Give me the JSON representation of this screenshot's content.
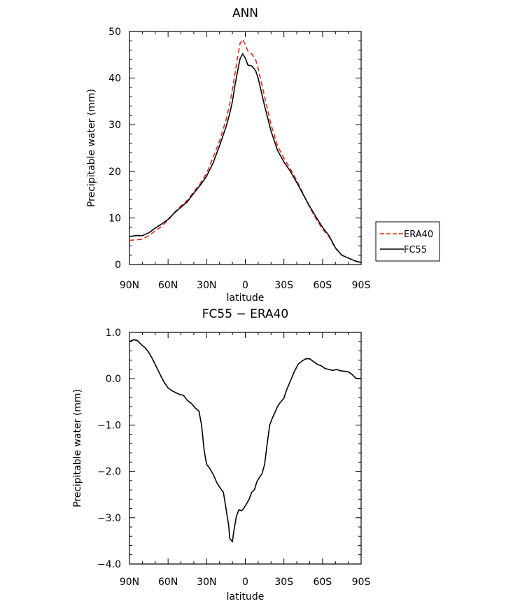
{
  "chart_data": [
    {
      "type": "line",
      "title": "ANN",
      "xlabel": "latitude",
      "ylabel": "Precipitable water (mm)",
      "xlim": [
        -90,
        90
      ],
      "ylim": [
        0,
        50
      ],
      "xticks": [
        {
          "v": -90,
          "label": "90N"
        },
        {
          "v": -60,
          "label": "60N"
        },
        {
          "v": -30,
          "label": "30N"
        },
        {
          "v": 0,
          "label": "0"
        },
        {
          "v": 30,
          "label": "30S"
        },
        {
          "v": 60,
          "label": "60S"
        },
        {
          "v": 90,
          "label": "90S"
        }
      ],
      "yticks": [
        {
          "v": 0,
          "label": "0"
        },
        {
          "v": 10,
          "label": "10"
        },
        {
          "v": 20,
          "label": "20"
        },
        {
          "v": 30,
          "label": "30"
        },
        {
          "v": 40,
          "label": "40"
        },
        {
          "v": 50,
          "label": "50"
        }
      ],
      "legend": {
        "position": "right"
      },
      "series": [
        {
          "name": "ERA40",
          "color": "#e8261c",
          "style": "dashed",
          "points": [
            [
              -90,
              5.2
            ],
            [
              -85,
              5.3
            ],
            [
              -80,
              5.4
            ],
            [
              -75,
              6.2
            ],
            [
              -70,
              7.2
            ],
            [
              -65,
              8.2
            ],
            [
              -60,
              9.5
            ],
            [
              -55,
              11.2
            ],
            [
              -50,
              12.6
            ],
            [
              -45,
              13.8
            ],
            [
              -40,
              15.6
            ],
            [
              -35,
              17.4
            ],
            [
              -30,
              19.6
            ],
            [
              -25,
              23.0
            ],
            [
              -20,
              26.5
            ],
            [
              -15,
              31.0
            ],
            [
              -12,
              34.5
            ],
            [
              -10,
              37.5
            ],
            [
              -8,
              41.0
            ],
            [
              -6,
              44.5
            ],
            [
              -4,
              47.5
            ],
            [
              -2,
              48.3
            ],
            [
              0,
              47.2
            ],
            [
              2,
              45.8
            ],
            [
              5,
              45.2
            ],
            [
              8,
              44.0
            ],
            [
              10,
              42.0
            ],
            [
              15,
              36.0
            ],
            [
              20,
              30.0
            ],
            [
              25,
              25.5
            ],
            [
              30,
              22.8
            ],
            [
              35,
              20.5
            ],
            [
              40,
              18.0
            ],
            [
              45,
              15.2
            ],
            [
              50,
              12.3
            ],
            [
              55,
              9.8
            ],
            [
              60,
              7.6
            ],
            [
              65,
              6.0
            ],
            [
              70,
              3.5
            ],
            [
              75,
              2.0
            ],
            [
              80,
              1.4
            ],
            [
              85,
              0.8
            ],
            [
              90,
              0.4
            ]
          ]
        },
        {
          "name": "FC55",
          "color": "#000000",
          "style": "solid",
          "points": [
            [
              -90,
              6.0
            ],
            [
              -85,
              6.2
            ],
            [
              -80,
              6.2
            ],
            [
              -75,
              6.8
            ],
            [
              -70,
              7.8
            ],
            [
              -65,
              8.7
            ],
            [
              -60,
              9.7
            ],
            [
              -55,
              11.1
            ],
            [
              -50,
              12.3
            ],
            [
              -45,
              13.5
            ],
            [
              -40,
              15.3
            ],
            [
              -35,
              17.0
            ],
            [
              -30,
              19.0
            ],
            [
              -25,
              21.8
            ],
            [
              -20,
              25.5
            ],
            [
              -15,
              29.5
            ],
            [
              -12,
              32.5
            ],
            [
              -10,
              35.0
            ],
            [
              -8,
              38.5
            ],
            [
              -6,
              41.5
            ],
            [
              -4,
              44.2
            ],
            [
              -2,
              45.2
            ],
            [
              0,
              44.3
            ],
            [
              2,
              42.8
            ],
            [
              5,
              42.6
            ],
            [
              8,
              41.6
            ],
            [
              10,
              40.0
            ],
            [
              15,
              34.0
            ],
            [
              20,
              28.6
            ],
            [
              25,
              24.5
            ],
            [
              30,
              22.0
            ],
            [
              35,
              20.0
            ],
            [
              40,
              17.6
            ],
            [
              45,
              15.0
            ],
            [
              50,
              12.5
            ],
            [
              55,
              10.2
            ],
            [
              60,
              8.0
            ],
            [
              65,
              6.2
            ],
            [
              70,
              3.6
            ],
            [
              75,
              2.0
            ],
            [
              80,
              1.4
            ],
            [
              85,
              0.8
            ],
            [
              90,
              0.4
            ]
          ]
        }
      ]
    },
    {
      "type": "line",
      "title": "FC55 − ERA40",
      "xlabel": "latitude",
      "ylabel": "Precipitable water (mm)",
      "xlim": [
        -90,
        90
      ],
      "ylim": [
        -4,
        1
      ],
      "xticks": [
        {
          "v": -90,
          "label": "90N"
        },
        {
          "v": -60,
          "label": "60N"
        },
        {
          "v": -30,
          "label": "30N"
        },
        {
          "v": 0,
          "label": "0"
        },
        {
          "v": 30,
          "label": "30S"
        },
        {
          "v": 60,
          "label": "60S"
        },
        {
          "v": 90,
          "label": "90S"
        }
      ],
      "yticks": [
        {
          "v": 1,
          "label": "1.0"
        },
        {
          "v": 0,
          "label": "0.0"
        },
        {
          "v": -1,
          "label": "−1.0"
        },
        {
          "v": -2,
          "label": "−2.0"
        },
        {
          "v": -3,
          "label": "−3.0"
        },
        {
          "v": -4,
          "label": "−4.0"
        }
      ],
      "series": [
        {
          "color": "#000000",
          "style": "solid",
          "points": [
            [
              -90,
              0.8
            ],
            [
              -87,
              0.84
            ],
            [
              -84,
              0.83
            ],
            [
              -81,
              0.74
            ],
            [
              -78,
              0.67
            ],
            [
              -75,
              0.57
            ],
            [
              -72,
              0.42
            ],
            [
              -69,
              0.25
            ],
            [
              -66,
              0.08
            ],
            [
              -63,
              -0.08
            ],
            [
              -60,
              -0.2
            ],
            [
              -57,
              -0.26
            ],
            [
              -54,
              -0.3
            ],
            [
              -51,
              -0.34
            ],
            [
              -48,
              -0.36
            ],
            [
              -45,
              -0.47
            ],
            [
              -42,
              -0.53
            ],
            [
              -39,
              -0.63
            ],
            [
              -36,
              -0.7
            ],
            [
              -34,
              -1.0
            ],
            [
              -32,
              -1.55
            ],
            [
              -30,
              -1.85
            ],
            [
              -28,
              -1.92
            ],
            [
              -25,
              -2.06
            ],
            [
              -22,
              -2.25
            ],
            [
              -19,
              -2.38
            ],
            [
              -17,
              -2.45
            ],
            [
              -15,
              -2.8
            ],
            [
              -13,
              -3.15
            ],
            [
              -12,
              -3.45
            ],
            [
              -10,
              -3.52
            ],
            [
              -9,
              -3.3
            ],
            [
              -7,
              -2.98
            ],
            [
              -5,
              -2.83
            ],
            [
              -3,
              -2.85
            ],
            [
              -1,
              -2.79
            ],
            [
              1,
              -2.7
            ],
            [
              3,
              -2.6
            ],
            [
              5,
              -2.45
            ],
            [
              7,
              -2.4
            ],
            [
              9,
              -2.22
            ],
            [
              11,
              -2.13
            ],
            [
              13,
              -2.05
            ],
            [
              15,
              -1.85
            ],
            [
              17,
              -1.4
            ],
            [
              19,
              -1.0
            ],
            [
              21,
              -0.85
            ],
            [
              23,
              -0.73
            ],
            [
              25,
              -0.6
            ],
            [
              27,
              -0.52
            ],
            [
              30,
              -0.42
            ],
            [
              32,
              -0.25
            ],
            [
              35,
              -0.05
            ],
            [
              38,
              0.15
            ],
            [
              41,
              0.31
            ],
            [
              44,
              0.38
            ],
            [
              47,
              0.43
            ],
            [
              50,
              0.43
            ],
            [
              53,
              0.37
            ],
            [
              56,
              0.31
            ],
            [
              59,
              0.28
            ],
            [
              62,
              0.22
            ],
            [
              65,
              0.2
            ],
            [
              68,
              0.18
            ],
            [
              71,
              0.2
            ],
            [
              74,
              0.17
            ],
            [
              77,
              0.16
            ],
            [
              80,
              0.15
            ],
            [
              83,
              0.09
            ],
            [
              86,
              0.01
            ],
            [
              90,
              0.0
            ]
          ]
        }
      ]
    }
  ]
}
